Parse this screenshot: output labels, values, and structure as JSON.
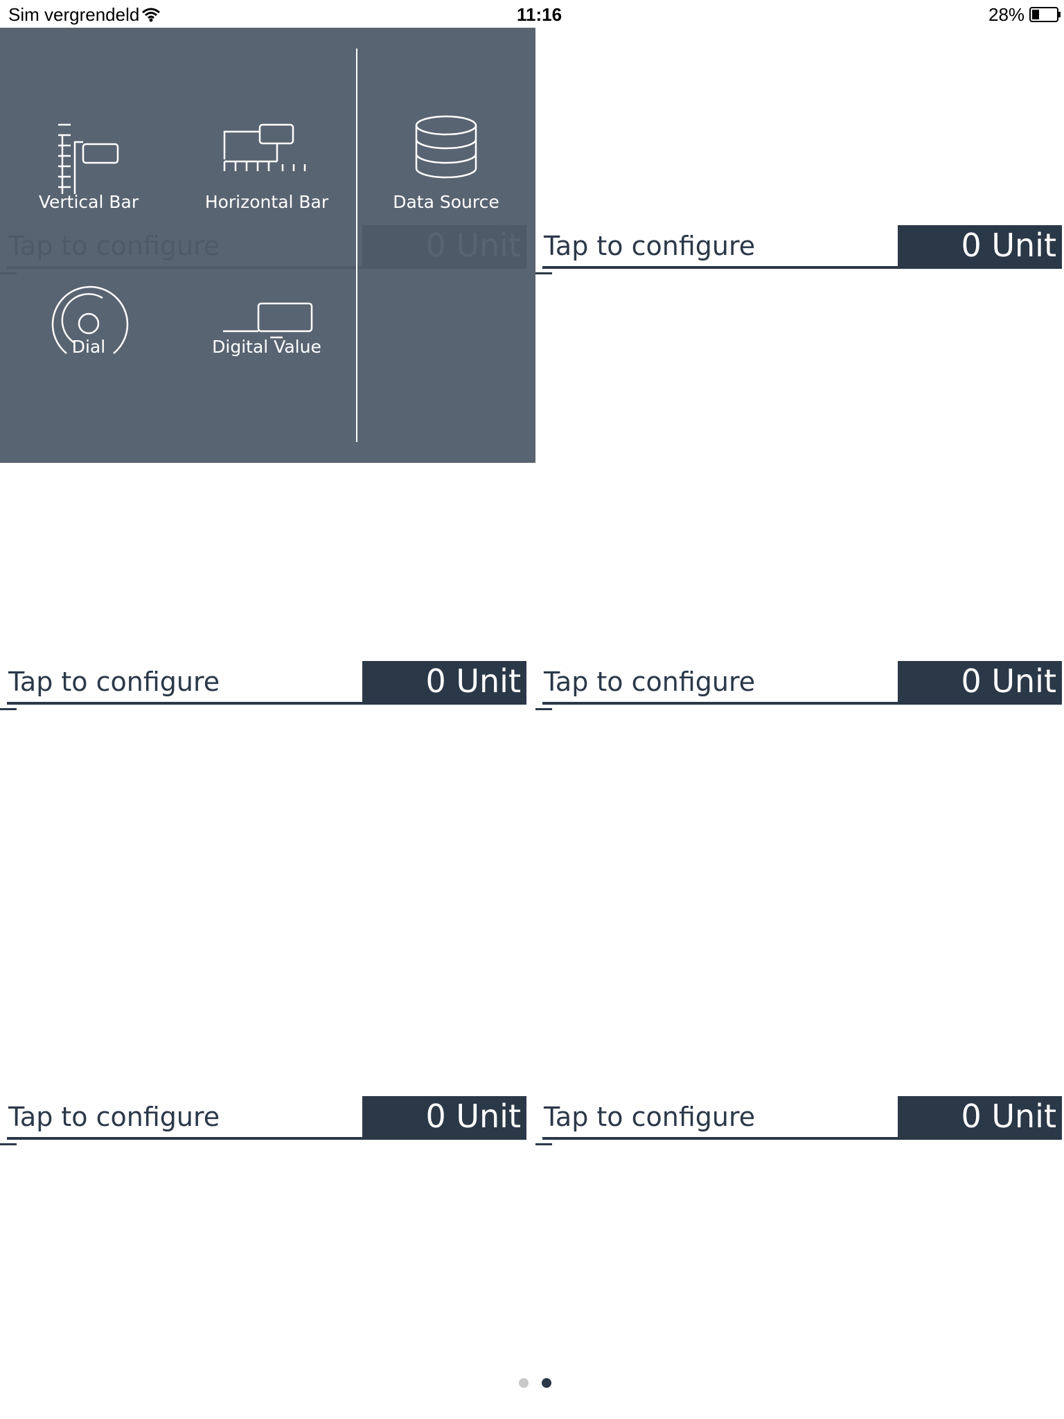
{
  "status_bar": {
    "carrier": "Sim vergrendeld",
    "time": "11:16",
    "battery": "28%"
  },
  "widgets": [
    {
      "label": "Tap to configure",
      "value": "0 Unit"
    },
    {
      "label": "Tap to configure",
      "value": "0 Unit"
    },
    {
      "label": "Tap to configure",
      "value": "0 Unit"
    },
    {
      "label": "Tap to configure",
      "value": "0 Unit"
    },
    {
      "label": "Tap to configure",
      "value": "0 Unit"
    },
    {
      "label": "Tap to configure",
      "value": "0 Unit"
    }
  ],
  "menu": {
    "items": [
      "Vertical Bar",
      "Horizontal Bar",
      "Data Source",
      "Dial",
      "Digital Value"
    ]
  }
}
